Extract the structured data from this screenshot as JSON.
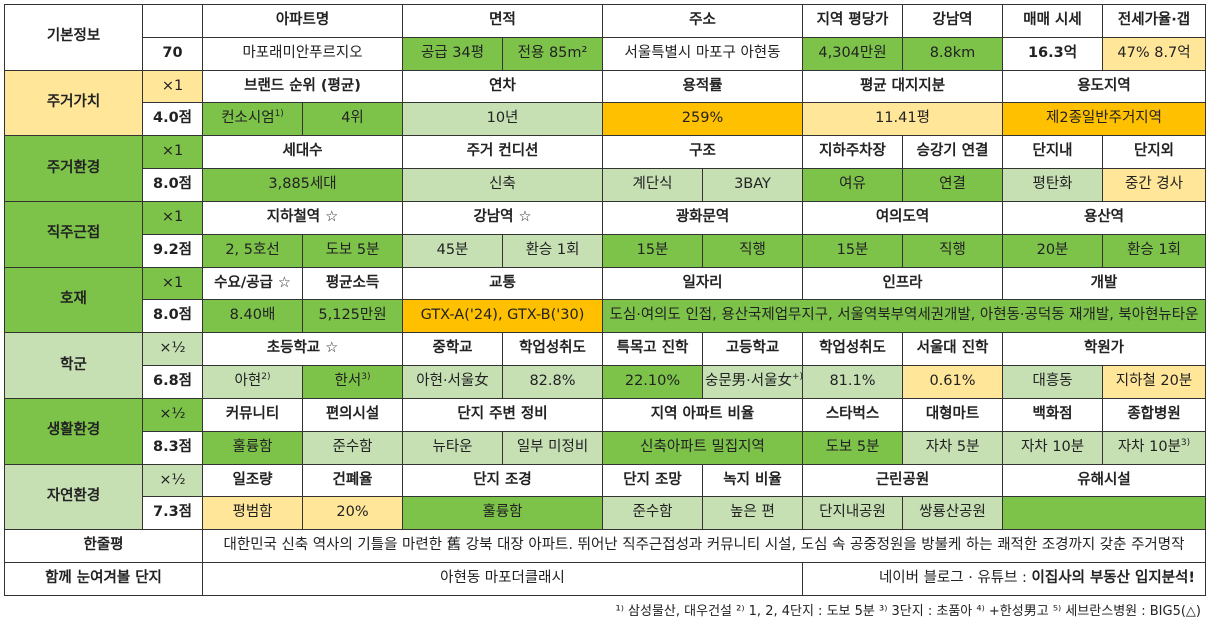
{
  "basic": {
    "label": "기본정보",
    "score": "70",
    "h_name": "아파트명",
    "h_area": "면적",
    "h_addr": "주소",
    "h_pyeong": "지역 평당가",
    "h_gangnam": "강남역",
    "h_sale": "매매 시세",
    "h_jeonse": "전세가율·갭",
    "name": "마포래미안푸르지오",
    "area_supply": "공급 34평",
    "area_exclusive": "전용 85m²",
    "addr": "서울특별시 마포구 아현동",
    "pyeong": "4,304만원",
    "gangnam": "8.8km",
    "sale": "16.3억",
    "jeonse": "47%  8.7억"
  },
  "housing_value": {
    "label": "주거가치",
    "mult": "×1",
    "score": "4.0점",
    "h_brand": "브랜드 순위 (평균)",
    "h_age": "연차",
    "h_far": "용적률",
    "h_land": "평균 대지지분",
    "h_zone": "용도지역",
    "brand": "컨소시엄",
    "brand_sup": "1)",
    "brand_rank": "4위",
    "age": "10년",
    "far": "259%",
    "land": "11.41평",
    "zone": "제2종일반주거지역"
  },
  "housing_env": {
    "label": "주거환경",
    "mult": "×1",
    "score": "8.0점",
    "h_units": "세대수",
    "h_cond": "주거 컨디션",
    "h_struct": "구조",
    "h_parking": "지하주차장",
    "h_elev": "승강기 연결",
    "h_inside": "단지내",
    "h_outside": "단지외",
    "units": "3,885세대",
    "cond": "신축",
    "struct_a": "계단식",
    "struct_b": "3BAY",
    "parking": "여유",
    "elev": "연결",
    "inside": "평탄화",
    "outside": "중간 경사"
  },
  "commute": {
    "label": "직주근접",
    "mult": "×1",
    "score": "9.2점",
    "h_subway": "지하철역 ☆",
    "h_gangnam": "강남역 ☆",
    "h_gwanghwamun": "광화문역",
    "h_yeouido": "여의도역",
    "h_yongsan": "용산역",
    "subway_a": "2, 5호선",
    "subway_b": "도보 5분",
    "gangnam_a": "45분",
    "gangnam_b": "환승 1회",
    "gwang_a": "15분",
    "gwang_b": "직행",
    "yeo_a": "15분",
    "yeo_b": "직행",
    "yong_a": "20분",
    "yong_b": "환승 1회"
  },
  "develop": {
    "label": "호재",
    "mult": "×1",
    "score": "8.0점",
    "h_demand": "수요/공급 ☆",
    "h_income": "평균소득",
    "h_traffic": "교통",
    "h_jobs": "일자리",
    "h_infra": "인프라",
    "h_dev": "개발",
    "demand": "8.40배",
    "income": "5,125만원",
    "traffic": "GTX-A('24), GTX-B('30)",
    "detail": "도심·여의도 인접, 용산국제업무지구, 서울역북부역세권개발, 아현동·공덕동 재개발, 북아현뉴타운"
  },
  "school": {
    "label": "학군",
    "mult": "×½",
    "score": "6.8점",
    "h_elem": "초등학교 ☆",
    "h_middle": "중학교",
    "h_mid_score": "학업성취도",
    "h_special": "특목고 진학",
    "h_high": "고등학교",
    "h_high_score": "학업성취도",
    "h_snu": "서울대 진학",
    "h_academy": "학원가",
    "elem_a": "아현",
    "elem_a_sup": "2)",
    "elem_b": "한서",
    "elem_b_sup": "3)",
    "middle": "아현·서울女",
    "mid_score": "82.8%",
    "special": "22.10%",
    "high": "숭문男·서울女",
    "high_sup": "+)",
    "high_score": "81.1%",
    "snu": "0.61%",
    "academy_a": "대흥동",
    "academy_b": "지하철 20분"
  },
  "living": {
    "label": "생활환경",
    "mult": "×½",
    "score": "8.3점",
    "h_comm": "커뮤니티",
    "h_conv": "편의시설",
    "h_around": "단지 주변 정비",
    "h_ratio": "지역 아파트 비율",
    "h_starbucks": "스타벅스",
    "h_mart": "대형마트",
    "h_dept": "백화점",
    "h_hospital": "종합병원",
    "comm": "훌륭함",
    "conv": "준수함",
    "around_a": "뉴타운",
    "around_b": "일부 미정비",
    "ratio": "신축아파트 밀집지역",
    "starbucks": "도보 5분",
    "mart": "자차 5분",
    "dept": "자차 10분",
    "hospital": "자차 10분",
    "hospital_sup": "3)"
  },
  "nature": {
    "label": "자연환경",
    "mult": "×½",
    "score": "7.3점",
    "h_sun": "일조량",
    "h_bcr": "건폐율",
    "h_landscape": "단지 조경",
    "h_view": "단지 조망",
    "h_green": "녹지 비율",
    "h_park": "근린공원",
    "h_hazard": "유해시설",
    "sun": "평범함",
    "bcr": "20%",
    "landscape": "훌륭함",
    "view": "준수함",
    "green": "높은 편",
    "park_a": "단지내공원",
    "park_b": "쌍룡산공원",
    "hazard": ""
  },
  "summary": {
    "label": "한줄평",
    "text": "대한민국 신축 역사의 기틀을 마련한 舊 강북 대장 아파트. 뛰어난 직주근접성과 커뮤니티 시설, 도심 속 공중정원을 방불케 하는 쾌적한 조경까지 갖춘 주거명작"
  },
  "together": {
    "label": "함께 눈여겨볼 단지",
    "text": "아현동 마포더클래시",
    "credit_prefix": "네이버 블로그 · 유튜브 : ",
    "credit_bold": "이집사의 부동산 입지분석!"
  },
  "footnote": "¹⁾ 삼성물산, 대우건설 ²⁾ 1, 2, 4단지 : 도보 5분 ³⁾ 3단지 : 초품아 ⁴⁾ +한성男고 ⁵⁾ 세브란스병원 : BIG5(△)",
  "colors": {
    "green": "#7dc34a",
    "light_green": "#c6e0b4",
    "orange": "#ffc000",
    "light_yellow": "#ffe699"
  }
}
